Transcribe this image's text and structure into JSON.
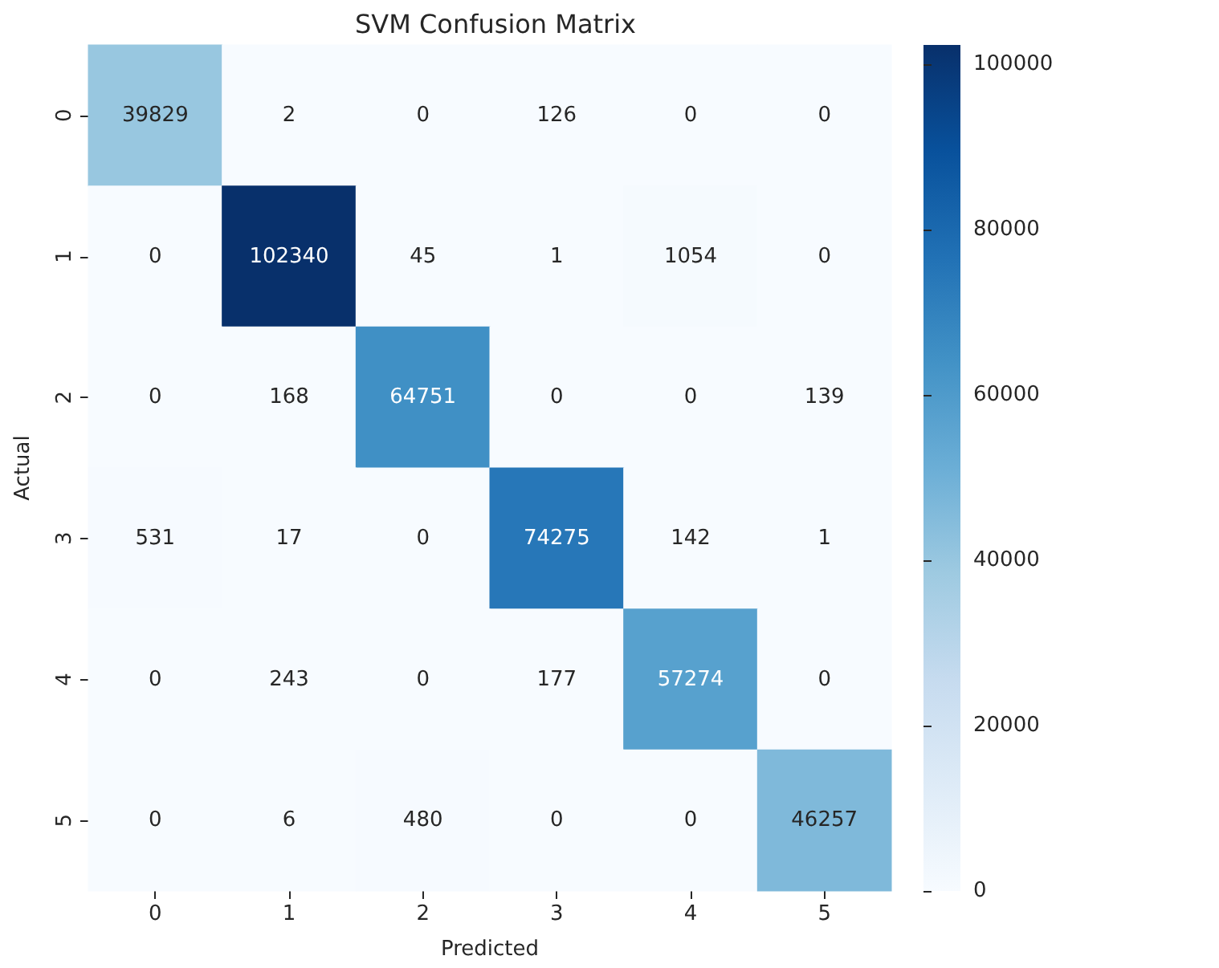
{
  "chart_data": {
    "type": "heatmap",
    "title": "SVM Confusion Matrix",
    "xlabel": "Predicted",
    "ylabel": "Actual",
    "categories": [
      "0",
      "1",
      "2",
      "3",
      "4",
      "5"
    ],
    "y_categories": [
      "0",
      "1",
      "2",
      "3",
      "4",
      "5"
    ],
    "cells": [
      [
        39829,
        2,
        0,
        126,
        0,
        0
      ],
      [
        0,
        102340,
        45,
        1,
        1054,
        0
      ],
      [
        0,
        168,
        64751,
        0,
        0,
        139
      ],
      [
        531,
        17,
        0,
        74275,
        142,
        1
      ],
      [
        0,
        243,
        0,
        177,
        57274,
        0
      ],
      [
        0,
        6,
        480,
        0,
        0,
        46257
      ]
    ],
    "data_labels": true,
    "clim": [
      0,
      102340
    ],
    "cticks": [
      0,
      20000,
      40000,
      60000,
      80000,
      100000
    ]
  }
}
